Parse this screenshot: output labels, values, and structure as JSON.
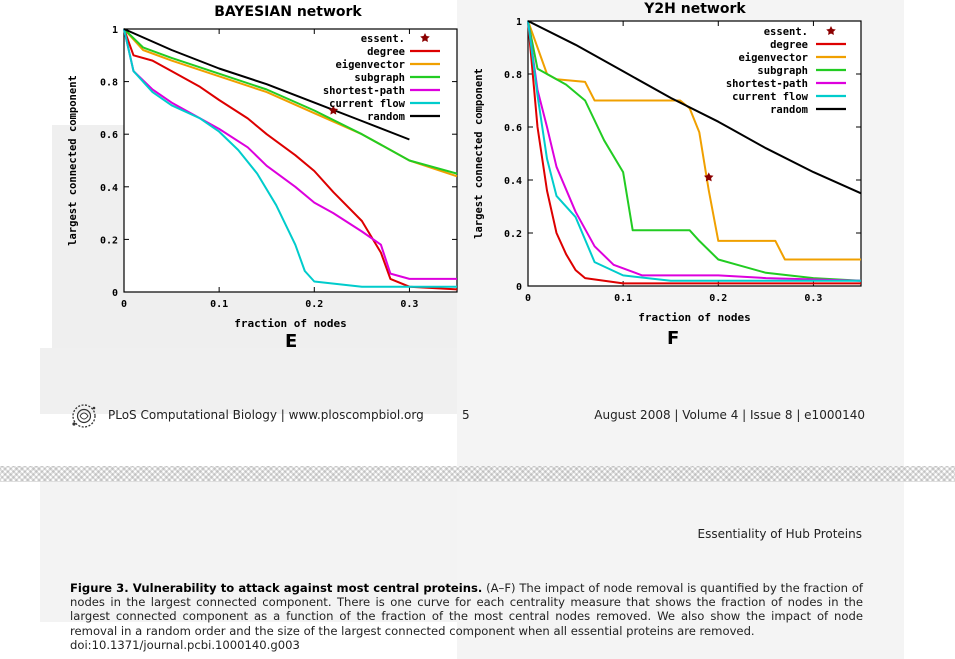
{
  "colors": {
    "essent": "#8b0000",
    "degree": "#dd0000",
    "eigenvector": "#f0a000",
    "subgraph": "#22cc22",
    "shortest-path": "#dd00dd",
    "current flow": "#00cccc",
    "random": "#000000"
  },
  "chart_data": [
    {
      "type": "line",
      "panel": "E",
      "title": "BAYESIAN network",
      "xlabel": "fraction of nodes",
      "ylabel": "largest connected component",
      "xlim": [
        0,
        0.35
      ],
      "ylim": [
        0,
        1
      ],
      "xticks": [
        0,
        0.1,
        0.2,
        0.3
      ],
      "xtick_labels": [
        "0",
        "0.1",
        "0.2",
        "0.3"
      ],
      "yticks": [
        0,
        0.2,
        0.4,
        0.6,
        0.8,
        1
      ],
      "ytick_labels": [
        "0",
        "0.2",
        "0.4",
        "0.6",
        "0.8",
        "1"
      ],
      "legend_position": "top-right",
      "essent_point": {
        "x": 0.22,
        "y": 0.69
      },
      "series": [
        {
          "name": "degree",
          "x": [
            0,
            0.01,
            0.03,
            0.05,
            0.08,
            0.1,
            0.13,
            0.15,
            0.18,
            0.2,
            0.22,
            0.25,
            0.27,
            0.28,
            0.3,
            0.35
          ],
          "y": [
            1,
            0.9,
            0.88,
            0.84,
            0.78,
            0.73,
            0.66,
            0.6,
            0.52,
            0.46,
            0.38,
            0.27,
            0.15,
            0.05,
            0.02,
            0.01
          ]
        },
        {
          "name": "eigenvector",
          "x": [
            0,
            0.02,
            0.05,
            0.1,
            0.15,
            0.2,
            0.25,
            0.3,
            0.35
          ],
          "y": [
            1,
            0.92,
            0.88,
            0.82,
            0.76,
            0.68,
            0.6,
            0.5,
            0.44
          ]
        },
        {
          "name": "subgraph",
          "x": [
            0,
            0.02,
            0.05,
            0.1,
            0.15,
            0.2,
            0.25,
            0.3,
            0.35
          ],
          "y": [
            1,
            0.93,
            0.89,
            0.83,
            0.77,
            0.69,
            0.6,
            0.5,
            0.45
          ]
        },
        {
          "name": "shortest-path",
          "x": [
            0,
            0.01,
            0.03,
            0.05,
            0.08,
            0.1,
            0.13,
            0.15,
            0.18,
            0.2,
            0.22,
            0.25,
            0.27,
            0.28,
            0.3,
            0.35
          ],
          "y": [
            1,
            0.84,
            0.77,
            0.72,
            0.66,
            0.62,
            0.55,
            0.48,
            0.4,
            0.34,
            0.3,
            0.23,
            0.18,
            0.07,
            0.05,
            0.05
          ]
        },
        {
          "name": "current flow",
          "x": [
            0,
            0.01,
            0.03,
            0.05,
            0.08,
            0.1,
            0.12,
            0.14,
            0.16,
            0.18,
            0.19,
            0.2,
            0.25,
            0.3,
            0.35
          ],
          "y": [
            1,
            0.84,
            0.76,
            0.71,
            0.66,
            0.61,
            0.54,
            0.45,
            0.33,
            0.18,
            0.08,
            0.04,
            0.02,
            0.02,
            0.02
          ]
        },
        {
          "name": "random",
          "x": [
            0,
            0.05,
            0.1,
            0.15,
            0.2,
            0.25,
            0.3
          ],
          "y": [
            1,
            0.92,
            0.85,
            0.79,
            0.72,
            0.65,
            0.58
          ]
        }
      ]
    },
    {
      "type": "line",
      "panel": "F",
      "title": "Y2H network",
      "xlabel": "fraction of nodes",
      "ylabel": "largest connected component",
      "xlim": [
        0,
        0.35
      ],
      "ylim": [
        0,
        1
      ],
      "xticks": [
        0,
        0.1,
        0.2,
        0.3
      ],
      "xtick_labels": [
        "0",
        "0.1",
        "0.2",
        "0.3"
      ],
      "yticks": [
        0,
        0.2,
        0.4,
        0.6,
        0.8,
        1
      ],
      "ytick_labels": [
        "0",
        "0.2",
        "0.4",
        "0.6",
        "0.8",
        "1"
      ],
      "legend_position": "top-right",
      "essent_point": {
        "x": 0.19,
        "y": 0.41
      },
      "series": [
        {
          "name": "degree",
          "x": [
            0,
            0.01,
            0.02,
            0.03,
            0.04,
            0.05,
            0.06,
            0.08,
            0.1,
            0.15,
            0.2,
            0.35
          ],
          "y": [
            1,
            0.6,
            0.36,
            0.2,
            0.12,
            0.06,
            0.03,
            0.02,
            0.01,
            0.01,
            0.01,
            0.01
          ]
        },
        {
          "name": "eigenvector",
          "x": [
            0,
            0.02,
            0.03,
            0.06,
            0.07,
            0.1,
            0.16,
            0.17,
            0.18,
            0.19,
            0.2,
            0.26,
            0.27,
            0.35
          ],
          "y": [
            1,
            0.8,
            0.78,
            0.77,
            0.7,
            0.7,
            0.7,
            0.67,
            0.58,
            0.36,
            0.17,
            0.17,
            0.1,
            0.1
          ]
        },
        {
          "name": "subgraph",
          "x": [
            0,
            0.01,
            0.02,
            0.04,
            0.06,
            0.08,
            0.1,
            0.11,
            0.17,
            0.18,
            0.2,
            0.22,
            0.25,
            0.3,
            0.35
          ],
          "y": [
            1,
            0.82,
            0.8,
            0.76,
            0.7,
            0.55,
            0.43,
            0.21,
            0.21,
            0.17,
            0.1,
            0.08,
            0.05,
            0.03,
            0.02
          ]
        },
        {
          "name": "shortest-path",
          "x": [
            0,
            0.01,
            0.02,
            0.03,
            0.05,
            0.07,
            0.09,
            0.12,
            0.2,
            0.25,
            0.35
          ],
          "y": [
            1,
            0.74,
            0.6,
            0.45,
            0.28,
            0.15,
            0.08,
            0.04,
            0.04,
            0.03,
            0.02
          ]
        },
        {
          "name": "current flow",
          "x": [
            0,
            0.01,
            0.02,
            0.03,
            0.05,
            0.07,
            0.1,
            0.15,
            0.2,
            0.35
          ],
          "y": [
            1,
            0.72,
            0.48,
            0.34,
            0.26,
            0.09,
            0.04,
            0.02,
            0.02,
            0.02
          ]
        },
        {
          "name": "random",
          "x": [
            0,
            0.05,
            0.1,
            0.15,
            0.2,
            0.25,
            0.3,
            0.35
          ],
          "y": [
            1,
            0.91,
            0.81,
            0.71,
            0.62,
            0.52,
            0.43,
            0.35
          ]
        }
      ]
    }
  ],
  "legend_entries": [
    "essent.",
    "degree",
    "eigenvector",
    "subgraph",
    "shortest-path",
    "current flow",
    "random"
  ],
  "footer": {
    "journal": "PLoS Computational Biology | www.ploscompbiol.org",
    "page_number": "5",
    "issue": "August 2008 | Volume 4 | Issue 8 | e1000140"
  },
  "running_head": "Essentiality of Hub Proteins",
  "caption": {
    "title": "Figure 3. Vulnerability to attack against most central proteins.",
    "body": " (A–F) The impact of node removal is quantified by the fraction of nodes in the largest connected component. There is one curve for each centrality measure that shows the fraction of nodes in the largest connected component as a function of the fraction of the most central nodes removed. We also show the impact of node removal in a random order and the size of the largest connected component when all essential proteins are removed.",
    "doi": "doi:10.1371/journal.pcbi.1000140.g003"
  }
}
